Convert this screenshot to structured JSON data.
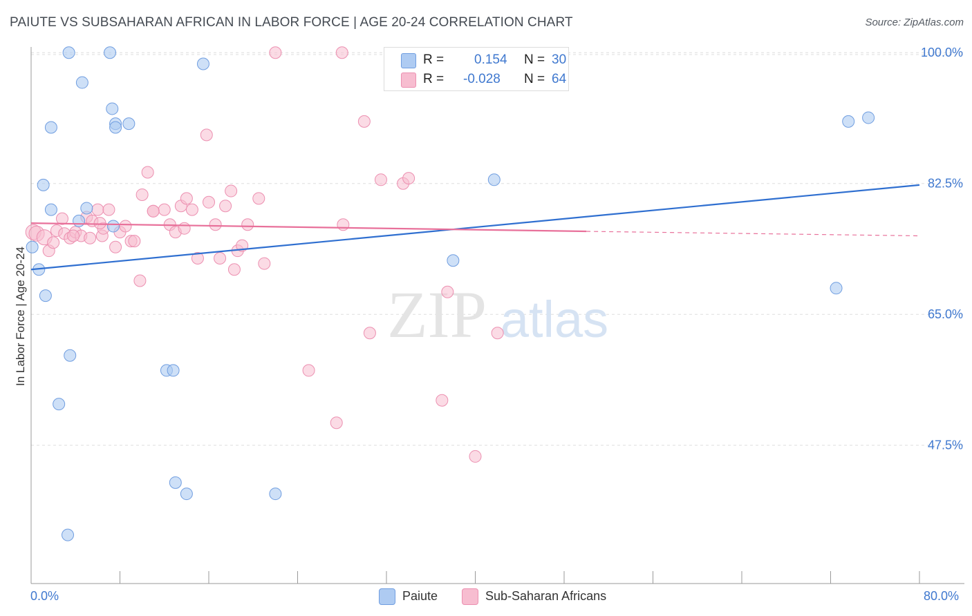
{
  "title": "PAIUTE VS SUBSAHARAN AFRICAN IN LABOR FORCE | AGE 20-24 CORRELATION CHART",
  "source": "Source: ZipAtlas.com",
  "watermark": {
    "zip": "ZIP",
    "atlas": "atlas"
  },
  "legend": {
    "paiute": {
      "r_label": "R =",
      "r_value": "0.154",
      "n_label": "N =",
      "n_value": "30"
    },
    "subsaharan": {
      "r_label": "R =",
      "r_value": "-0.028",
      "n_label": "N =",
      "n_value": "64"
    }
  },
  "bottom_legend": {
    "paiute": "Paiute",
    "subsaharan": "Sub-Saharan Africans"
  },
  "colors": {
    "paiute_fill": "#aecbf2",
    "paiute_stroke": "#6f9de0",
    "paiute_line": "#2f6fd0",
    "sub_fill": "#f7bdd0",
    "sub_stroke": "#ec8fb0",
    "sub_line": "#e8709a",
    "tick": "#3f78cf",
    "grid": "#dddddd"
  },
  "chart_data": {
    "type": "scatter",
    "title": "PAIUTE VS SUBSAHARAN AFRICAN IN LABOR FORCE | AGE 20-24 CORRELATION CHART",
    "xlabel": "",
    "ylabel": "In Labor Force | Age 20-24",
    "xlim": [
      0,
      80
    ],
    "ylim": [
      29.0,
      101.5
    ],
    "x_tick_labels": [
      "0.0%",
      "80.0%"
    ],
    "y_ticks": [
      {
        "value": 100.0,
        "label": "100.0%"
      },
      {
        "value": 82.5,
        "label": "82.5%"
      },
      {
        "value": 65.0,
        "label": "65.0%"
      },
      {
        "value": 47.5,
        "label": "47.5%"
      }
    ],
    "series": [
      {
        "name": "Paiute",
        "points": [
          [
            0.1,
            74.0
          ],
          [
            0.7,
            71.0
          ],
          [
            1.3,
            67.5
          ],
          [
            1.1,
            82.3
          ],
          [
            1.8,
            90.0
          ],
          [
            1.8,
            79.0
          ],
          [
            3.4,
            100.0
          ],
          [
            3.5,
            59.5
          ],
          [
            2.5,
            53.0
          ],
          [
            3.3,
            35.5
          ],
          [
            4.6,
            96.0
          ],
          [
            4.3,
            77.5
          ],
          [
            5.0,
            79.2
          ],
          [
            7.1,
            100.0
          ],
          [
            7.3,
            92.5
          ],
          [
            7.6,
            90.5
          ],
          [
            8.8,
            90.5
          ],
          [
            7.6,
            90.0
          ],
          [
            12.2,
            57.5
          ],
          [
            12.8,
            57.5
          ],
          [
            15.5,
            98.5
          ],
          [
            13.0,
            42.5
          ],
          [
            14.0,
            41.0
          ],
          [
            22.0,
            41.0
          ],
          [
            38.0,
            72.2
          ],
          [
            41.7,
            83.0
          ],
          [
            72.5,
            68.5
          ],
          [
            73.6,
            90.8
          ],
          [
            75.4,
            91.3
          ],
          [
            7.4,
            76.8
          ]
        ],
        "trend": {
          "x": [
            0,
            80
          ],
          "y": [
            71.0,
            82.3
          ],
          "style": "solid"
        }
      },
      {
        "name": "Sub-Saharan Africans",
        "points": [
          [
            0.2,
            76.0
          ],
          [
            0.5,
            75.8
          ],
          [
            1.2,
            75.3
          ],
          [
            1.6,
            73.5
          ],
          [
            2.0,
            74.6
          ],
          [
            2.3,
            76.2
          ],
          [
            3.0,
            75.8
          ],
          [
            3.5,
            75.2
          ],
          [
            4.0,
            76.0
          ],
          [
            4.5,
            75.5
          ],
          [
            5.0,
            78.0
          ],
          [
            5.3,
            75.2
          ],
          [
            5.5,
            77.5
          ],
          [
            6.0,
            79.0
          ],
          [
            6.4,
            75.5
          ],
          [
            6.5,
            76.5
          ],
          [
            7.0,
            79.0
          ],
          [
            7.6,
            74.0
          ],
          [
            8.0,
            76.0
          ],
          [
            8.5,
            76.8
          ],
          [
            9.0,
            74.8
          ],
          [
            9.8,
            69.5
          ],
          [
            10.0,
            81.0
          ],
          [
            10.5,
            84.0
          ],
          [
            11.0,
            78.8
          ],
          [
            12.0,
            79.0
          ],
          [
            12.5,
            77.0
          ],
          [
            13.0,
            76.0
          ],
          [
            13.5,
            79.5
          ],
          [
            14.0,
            80.5
          ],
          [
            15.0,
            72.5
          ],
          [
            15.8,
            89.0
          ],
          [
            16.0,
            80.0
          ],
          [
            16.6,
            77.0
          ],
          [
            17.0,
            72.5
          ],
          [
            17.5,
            79.5
          ],
          [
            18.0,
            81.5
          ],
          [
            18.3,
            71.0
          ],
          [
            18.6,
            73.5
          ],
          [
            19.0,
            74.2
          ],
          [
            19.5,
            77.0
          ],
          [
            20.5,
            80.5
          ],
          [
            21.0,
            71.8
          ],
          [
            22.0,
            100.0
          ],
          [
            25.0,
            57.5
          ],
          [
            27.5,
            50.5
          ],
          [
            28.0,
            100.0
          ],
          [
            28.1,
            77.0
          ],
          [
            30.0,
            90.8
          ],
          [
            30.5,
            62.5
          ],
          [
            31.5,
            83.0
          ],
          [
            33.5,
            82.5
          ],
          [
            34.0,
            83.2
          ],
          [
            37.0,
            53.5
          ],
          [
            37.5,
            68.0
          ],
          [
            42.0,
            62.5
          ],
          [
            40.0,
            46.0
          ],
          [
            11.0,
            78.8
          ],
          [
            9.3,
            74.8
          ],
          [
            14.5,
            79.0
          ],
          [
            13.8,
            76.5
          ],
          [
            3.8,
            75.5
          ],
          [
            2.8,
            77.8
          ],
          [
            6.2,
            77.2
          ]
        ],
        "trend": {
          "x": [
            0,
            50,
            80
          ],
          "y": [
            77.2,
            76.1,
            75.5
          ],
          "style": "solid-then-dashed"
        }
      }
    ]
  }
}
